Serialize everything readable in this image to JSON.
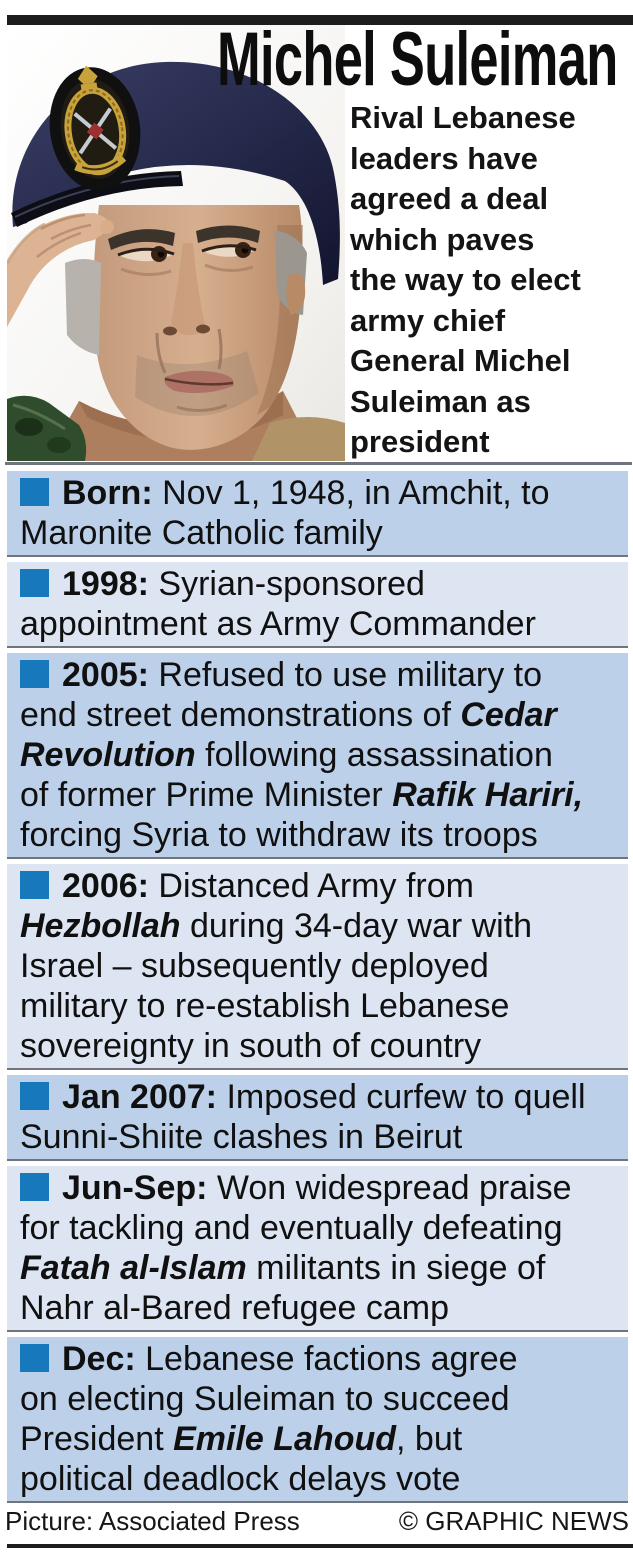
{
  "header": {
    "title": "Michel Suleiman",
    "intro_lines": [
      "Rival Lebanese",
      "leaders have",
      "agreed a deal",
      "which paves",
      "the way to elect",
      "army chief",
      "General Michel",
      "Suleiman as",
      "president"
    ],
    "photo_alt": "General Michel Suleiman saluting, wearing navy beret with gold Lebanese army insignia"
  },
  "colors": {
    "bullet": "#1878bc",
    "row_dark": "#bdd0e9",
    "row_light": "#dde5f3",
    "separator": "#70757d",
    "bar": "#1d1d1d"
  },
  "timeline": {
    "items": [
      {
        "shade": "dark",
        "lines": [
          [
            {
              "t": "Born:",
              "s": "b"
            },
            {
              "t": " Nov 1, 1948, in Amchit, to"
            }
          ],
          [
            {
              "t": "Maronite Catholic family"
            }
          ]
        ]
      },
      {
        "shade": "light",
        "lines": [
          [
            {
              "t": "1998:",
              "s": "b"
            },
            {
              "t": " Syrian-sponsored"
            }
          ],
          [
            {
              "t": "appointment as Army Commander"
            }
          ]
        ]
      },
      {
        "shade": "dark",
        "lines": [
          [
            {
              "t": "2005:",
              "s": "b"
            },
            {
              "t": " Refused to use military to"
            }
          ],
          [
            {
              "t": "end street demonstrations of "
            },
            {
              "t": "Cedar",
              "s": "bi"
            }
          ],
          [
            {
              "t": "Revolution",
              "s": "bi"
            },
            {
              "t": " following assassination"
            }
          ],
          [
            {
              "t": "of former Prime Minister "
            },
            {
              "t": "Rafik Hariri,",
              "s": "bi"
            }
          ],
          [
            {
              "t": "forcing Syria to withdraw its troops"
            }
          ]
        ]
      },
      {
        "shade": "light",
        "lines": [
          [
            {
              "t": "2006:",
              "s": "b"
            },
            {
              "t": " Distanced Army from"
            }
          ],
          [
            {
              "t": "Hezbollah",
              "s": "bi"
            },
            {
              "t": " during 34-day war with"
            }
          ],
          [
            {
              "t": "Israel – subsequently deployed"
            }
          ],
          [
            {
              "t": "military to re-establish Lebanese"
            }
          ],
          [
            {
              "t": "sovereignty in south of country"
            }
          ]
        ]
      },
      {
        "shade": "dark",
        "lines": [
          [
            {
              "t": "Jan 2007:",
              "s": "b"
            },
            {
              "t": " Imposed curfew to quell"
            }
          ],
          [
            {
              "t": "Sunni-Shiite clashes in Beirut"
            }
          ]
        ]
      },
      {
        "shade": "light",
        "lines": [
          [
            {
              "t": "Jun-Sep:",
              "s": "b"
            },
            {
              "t": " Won widespread praise"
            }
          ],
          [
            {
              "t": "for tackling and eventually defeating"
            }
          ],
          [
            {
              "t": "Fatah al-Islam",
              "s": "bi"
            },
            {
              "t": " militants in siege of"
            }
          ],
          [
            {
              "t": "Nahr al-Bared refugee camp"
            }
          ]
        ]
      },
      {
        "shade": "dark",
        "lines": [
          [
            {
              "t": "Dec:",
              "s": "b"
            },
            {
              "t": " Lebanese factions agree"
            }
          ],
          [
            {
              "t": "on electing Suleiman to succeed"
            }
          ],
          [
            {
              "t": "President "
            },
            {
              "t": "Emile Lahoud",
              "s": "bi"
            },
            {
              "t": ", but"
            }
          ],
          [
            {
              "t": "political deadlock delays vote"
            }
          ]
        ]
      }
    ]
  },
  "footer": {
    "credit": "Picture: Associated Press",
    "copyright": "© GRAPHIC NEWS"
  }
}
